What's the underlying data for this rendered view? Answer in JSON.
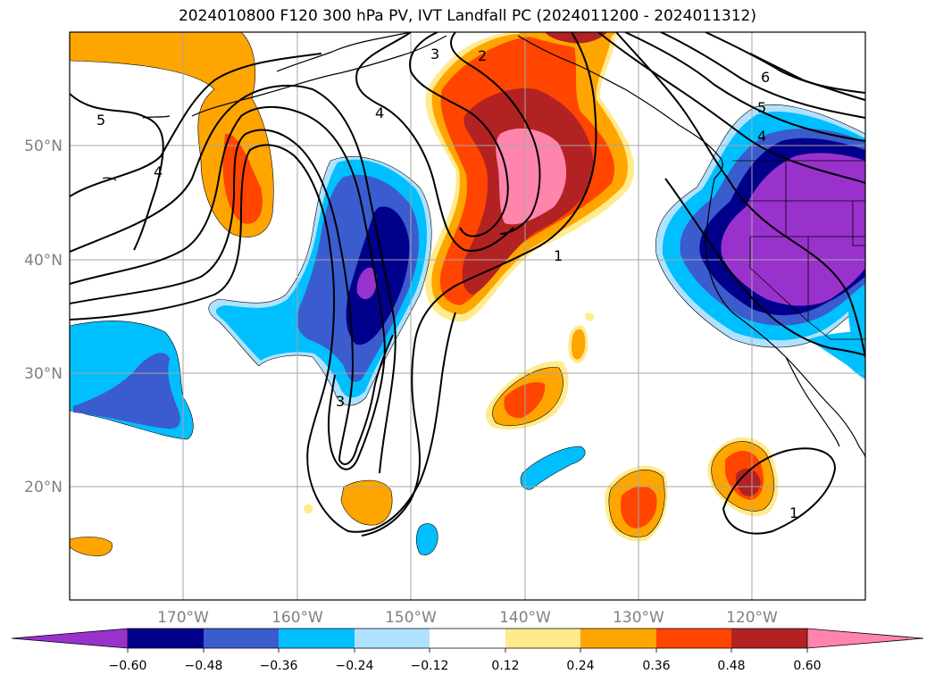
{
  "title": "2024010800 F120 300 hPa PV, IVT Landfall PC (2024011200 - 2024011312)",
  "map": {
    "lat_labels": [
      "50°N",
      "40°N",
      "30°N",
      "20°N"
    ],
    "lon_labels": [
      "170°W",
      "160°W",
      "150°W",
      "140°W",
      "130°W",
      "120°W"
    ],
    "contour_labels": [
      "1",
      "1",
      "2",
      "3",
      "3",
      "4",
      "4",
      "4",
      "5",
      "5",
      "6"
    ]
  },
  "colorbar": {
    "ticks": [
      "−0.60",
      "−0.48",
      "−0.36",
      "−0.24",
      "−0.12",
      "0.12",
      "0.24",
      "0.36",
      "0.48",
      "0.60"
    ],
    "colors": [
      "#9932cc",
      "#00008b",
      "#3b5ccf",
      "#00bfff",
      "#b0e2ff",
      "#ffffff",
      "#ffeb8c",
      "#ffa500",
      "#ff4500",
      "#b22222",
      "#ff85ad"
    ]
  }
}
